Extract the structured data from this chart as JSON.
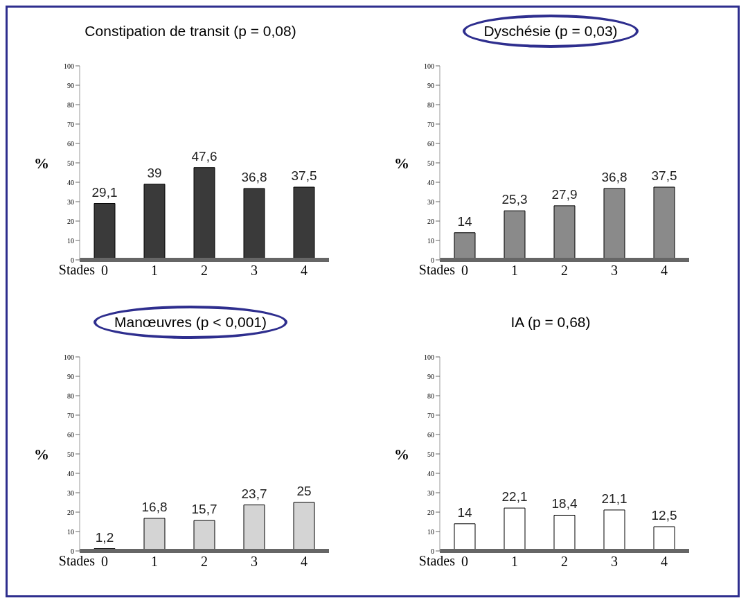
{
  "chart_data": [
    {
      "type": "bar",
      "title": "Constipation de transit (p = 0,08)",
      "xlabel": "Stades",
      "ylabel": "%",
      "categories": [
        "0",
        "1",
        "2",
        "3",
        "4"
      ],
      "values": [
        29.1,
        39,
        47.6,
        36.8,
        37.5
      ],
      "value_labels": [
        "29,1",
        "39",
        "47,6",
        "36,8",
        "37,5"
      ],
      "color": "#3a3a3a",
      "ylim": [
        0,
        100
      ],
      "yticks": [
        0,
        10,
        20,
        30,
        40,
        50,
        60,
        70,
        80,
        90,
        100
      ]
    },
    {
      "type": "bar",
      "title": "Dyschésie (p = 0,03)",
      "xlabel": "Stades",
      "ylabel": "%",
      "categories": [
        "0",
        "1",
        "2",
        "3",
        "4"
      ],
      "values": [
        14,
        25.3,
        27.9,
        36.8,
        37.5
      ],
      "value_labels": [
        "14",
        "25,3",
        "27,9",
        "36,8",
        "37,5"
      ],
      "color": "#8a8a8a",
      "ylim": [
        0,
        100
      ],
      "yticks": [
        0,
        10,
        20,
        30,
        40,
        50,
        60,
        70,
        80,
        90,
        100
      ]
    },
    {
      "type": "bar",
      "title": "Manœuvres (p < 0,001)",
      "xlabel": "Stades",
      "ylabel": "%",
      "categories": [
        "0",
        "1",
        "2",
        "3",
        "4"
      ],
      "values": [
        1.2,
        16.8,
        15.7,
        23.7,
        25
      ],
      "value_labels": [
        "1,2",
        "16,8",
        "15,7",
        "23,7",
        "25"
      ],
      "color": "#d4d4d4",
      "ylim": [
        0,
        100
      ],
      "yticks": [
        0,
        10,
        20,
        30,
        40,
        50,
        60,
        70,
        80,
        90,
        100
      ]
    },
    {
      "type": "bar",
      "title": "IA (p = 0,68)",
      "xlabel": "Stades",
      "ylabel": "%",
      "categories": [
        "0",
        "1",
        "2",
        "3",
        "4"
      ],
      "values": [
        14,
        22.1,
        18.4,
        21.1,
        12.5
      ],
      "value_labels": [
        "14",
        "22,1",
        "18,4",
        "21,1",
        "12,5"
      ],
      "color": "#ffffff",
      "ylim": [
        0,
        100
      ],
      "yticks": [
        0,
        10,
        20,
        30,
        40,
        50,
        60,
        70,
        80,
        90,
        100
      ]
    }
  ]
}
